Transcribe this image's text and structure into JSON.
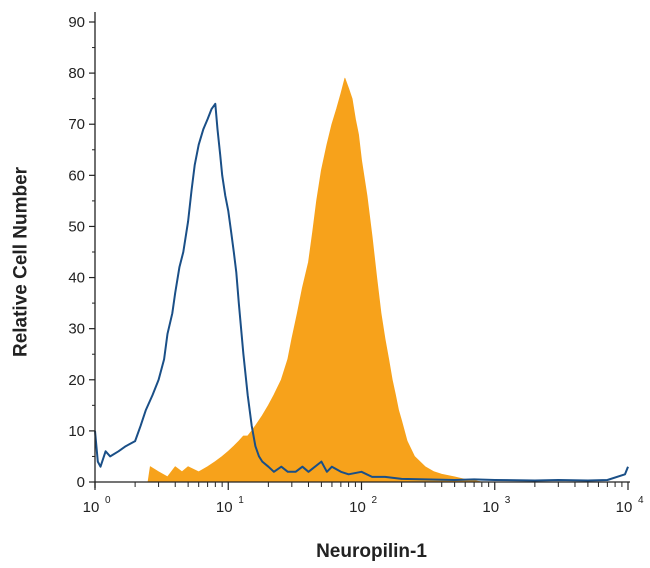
{
  "chart_data": {
    "type": "histogram",
    "xlabel": "Neuropilin-1",
    "ylabel": "Relative Cell Number",
    "xscale": "log",
    "xlim": [
      1,
      10000
    ],
    "ylim": [
      0,
      90
    ],
    "x_ticks": [
      {
        "value": 1,
        "base": "10",
        "exp": "0"
      },
      {
        "value": 10,
        "base": "10",
        "exp": "1"
      },
      {
        "value": 100,
        "base": "10",
        "exp": "2"
      },
      {
        "value": 1000,
        "base": "10",
        "exp": "3"
      },
      {
        "value": 10000,
        "base": "10",
        "exp": "4"
      }
    ],
    "y_ticks": [
      "0",
      "10",
      "20",
      "30",
      "40",
      "50",
      "60",
      "70",
      "80",
      "90"
    ],
    "grid": false,
    "legend": "none",
    "series": [
      {
        "style": "filled",
        "color": "#f7a21b",
        "points": [
          [
            2.5,
            0
          ],
          [
            2.6,
            3
          ],
          [
            3,
            2
          ],
          [
            3.5,
            1
          ],
          [
            4,
            3
          ],
          [
            4.5,
            2
          ],
          [
            5,
            3
          ],
          [
            6,
            2
          ],
          [
            7,
            3
          ],
          [
            8,
            4
          ],
          [
            9,
            5
          ],
          [
            10,
            6
          ],
          [
            11,
            7
          ],
          [
            12,
            8
          ],
          [
            13,
            9
          ],
          [
            14,
            9
          ],
          [
            15,
            10
          ],
          [
            16,
            11
          ],
          [
            18,
            13
          ],
          [
            20,
            15
          ],
          [
            22,
            17
          ],
          [
            25,
            20
          ],
          [
            28,
            24
          ],
          [
            30,
            28
          ],
          [
            33,
            33
          ],
          [
            36,
            38
          ],
          [
            40,
            43
          ],
          [
            43,
            49
          ],
          [
            46,
            55
          ],
          [
            50,
            61
          ],
          [
            55,
            66
          ],
          [
            60,
            70
          ],
          [
            65,
            73
          ],
          [
            70,
            76
          ],
          [
            75,
            79
          ],
          [
            80,
            77
          ],
          [
            85,
            75
          ],
          [
            90,
            71
          ],
          [
            95,
            68
          ],
          [
            100,
            63
          ],
          [
            110,
            56
          ],
          [
            120,
            48
          ],
          [
            130,
            40
          ],
          [
            140,
            33
          ],
          [
            150,
            28
          ],
          [
            160,
            24
          ],
          [
            170,
            20
          ],
          [
            180,
            17
          ],
          [
            190,
            14
          ],
          [
            200,
            12
          ],
          [
            220,
            8
          ],
          [
            250,
            5
          ],
          [
            300,
            3
          ],
          [
            350,
            2
          ],
          [
            400,
            1.5
          ],
          [
            500,
            1
          ],
          [
            600,
            0.5
          ],
          [
            700,
            0.3
          ],
          [
            800,
            0
          ]
        ]
      },
      {
        "style": "outline",
        "color": "#1a4f87",
        "points": [
          [
            1,
            10
          ],
          [
            1.05,
            4
          ],
          [
            1.1,
            3
          ],
          [
            1.2,
            6
          ],
          [
            1.3,
            5
          ],
          [
            1.5,
            6
          ],
          [
            1.7,
            7
          ],
          [
            2,
            8
          ],
          [
            2.2,
            11
          ],
          [
            2.4,
            14
          ],
          [
            2.7,
            17
          ],
          [
            3,
            20
          ],
          [
            3.3,
            24
          ],
          [
            3.5,
            29
          ],
          [
            3.8,
            33
          ],
          [
            4,
            37
          ],
          [
            4.3,
            42
          ],
          [
            4.6,
            45
          ],
          [
            5,
            51
          ],
          [
            5.3,
            57
          ],
          [
            5.6,
            62
          ],
          [
            6,
            66
          ],
          [
            6.5,
            69
          ],
          [
            7,
            71
          ],
          [
            7.5,
            73
          ],
          [
            8,
            74
          ],
          [
            8.3,
            69
          ],
          [
            8.7,
            64
          ],
          [
            9,
            60
          ],
          [
            9.5,
            56
          ],
          [
            10,
            53
          ],
          [
            10.5,
            49
          ],
          [
            11,
            45
          ],
          [
            11.5,
            41
          ],
          [
            12,
            35
          ],
          [
            13,
            25
          ],
          [
            14,
            17
          ],
          [
            15,
            11
          ],
          [
            16,
            7
          ],
          [
            17,
            5
          ],
          [
            18,
            4
          ],
          [
            20,
            3
          ],
          [
            22,
            2
          ],
          [
            25,
            3
          ],
          [
            28,
            2
          ],
          [
            32,
            2
          ],
          [
            36,
            3
          ],
          [
            40,
            2
          ],
          [
            50,
            4
          ],
          [
            55,
            2
          ],
          [
            60,
            3
          ],
          [
            70,
            2
          ],
          [
            80,
            1.5
          ],
          [
            100,
            2
          ],
          [
            120,
            1
          ],
          [
            150,
            1
          ],
          [
            200,
            0.6
          ],
          [
            300,
            0.5
          ],
          [
            500,
            0.4
          ],
          [
            700,
            0.5
          ],
          [
            1000,
            0.4
          ],
          [
            2000,
            0.3
          ],
          [
            3000,
            0.4
          ],
          [
            5000,
            0.3
          ],
          [
            7000,
            0.4
          ],
          [
            9500,
            1.5
          ],
          [
            10000,
            3
          ]
        ]
      }
    ]
  }
}
